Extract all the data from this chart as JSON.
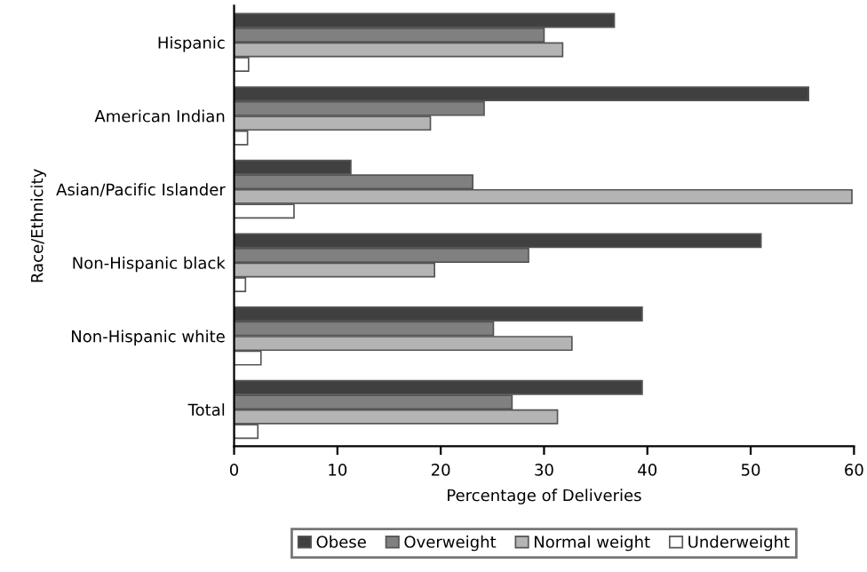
{
  "chart_data": {
    "type": "bar",
    "orientation": "horizontal",
    "ylabel": "Race/Ethnicity",
    "xlabel": "Percentage of Deliveries",
    "categories": [
      "Hispanic",
      "American Indian",
      "Asian/Pacific Islander",
      "Non-Hispanic black",
      "Non-Hispanic white",
      "Total"
    ],
    "series": [
      {
        "name": "Obese",
        "color": "#404040",
        "values": [
          36.8,
          55.6,
          11.3,
          51.0,
          39.5,
          39.5
        ]
      },
      {
        "name": "Overweight",
        "color": "#808080",
        "values": [
          30.0,
          24.2,
          23.1,
          28.5,
          25.1,
          26.9
        ]
      },
      {
        "name": "Normal weight",
        "color": "#b4b4b4",
        "values": [
          31.8,
          19.0,
          59.8,
          19.4,
          32.7,
          31.3
        ]
      },
      {
        "name": "Underweight",
        "color": "#ffffff",
        "values": [
          1.4,
          1.3,
          5.8,
          1.1,
          2.6,
          2.3
        ]
      }
    ],
    "xlim": [
      0,
      60
    ],
    "xticks": [
      0,
      10,
      20,
      30,
      40,
      50,
      60
    ],
    "legend": "bottom",
    "grid": false
  }
}
